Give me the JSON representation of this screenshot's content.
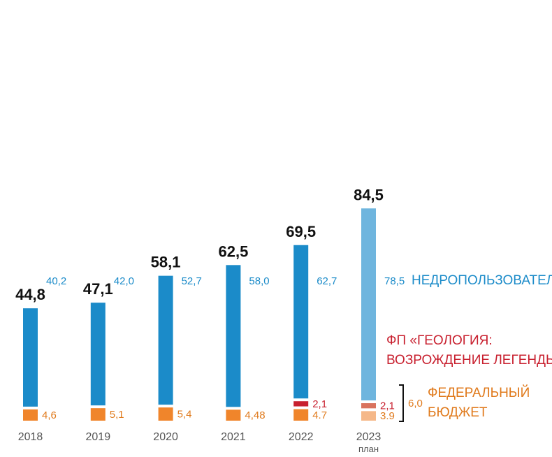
{
  "chart_data": {
    "type": "bar",
    "stacked": true,
    "categories": [
      "2018",
      "2019",
      "2020",
      "2021",
      "2022",
      "2023"
    ],
    "category_sublabels": [
      "",
      "",
      "",
      "",
      "",
      "план"
    ],
    "totals": [
      "44,8",
      "47,1",
      "58,1",
      "62,5",
      "69,5",
      "84,5"
    ],
    "series": [
      {
        "key": "subsoil",
        "name": "НЕДРОПОЛЬЗОВАТЕЛИ",
        "color": "#1b8bc9",
        "highlight_color": "#6fb5de",
        "values": [
          40.2,
          42.0,
          52.7,
          58.0,
          62.7,
          78.5
        ],
        "labels": [
          "40,2",
          "42,0",
          "52,7",
          "58,0",
          "62,7",
          "78,5"
        ]
      },
      {
        "key": "geology",
        "name": "ФП «ГЕОЛОГИЯ:",
        "name_line2": "ВОЗРОЖДЕНИЕ ЛЕГЕНДЫ»",
        "color": "#c8202f",
        "highlight_color": "#d9735e",
        "values": [
          null,
          null,
          null,
          null,
          2.1,
          2.1
        ],
        "labels": [
          "",
          "",
          "",
          "",
          "2,1",
          "2,1"
        ]
      },
      {
        "key": "federal",
        "name": "ФЕДЕРАЛЬНЫЙ",
        "name_line2": "БЮДЖЕТ",
        "color": "#f0852b",
        "highlight_color": "#f5b889",
        "values": [
          4.6,
          5.1,
          5.4,
          4.48,
          4.7,
          3.9
        ],
        "labels": [
          "4,6",
          "5,1",
          "5,4",
          "4,48",
          "4.7",
          "3.9"
        ]
      }
    ],
    "bracket_label": "6,0",
    "label_colors": {
      "subsoil": "#1b8bc9",
      "geology": "#c8202f",
      "federal": "#e07a1c"
    },
    "text_color": "#111111",
    "year_color": "#555555"
  }
}
